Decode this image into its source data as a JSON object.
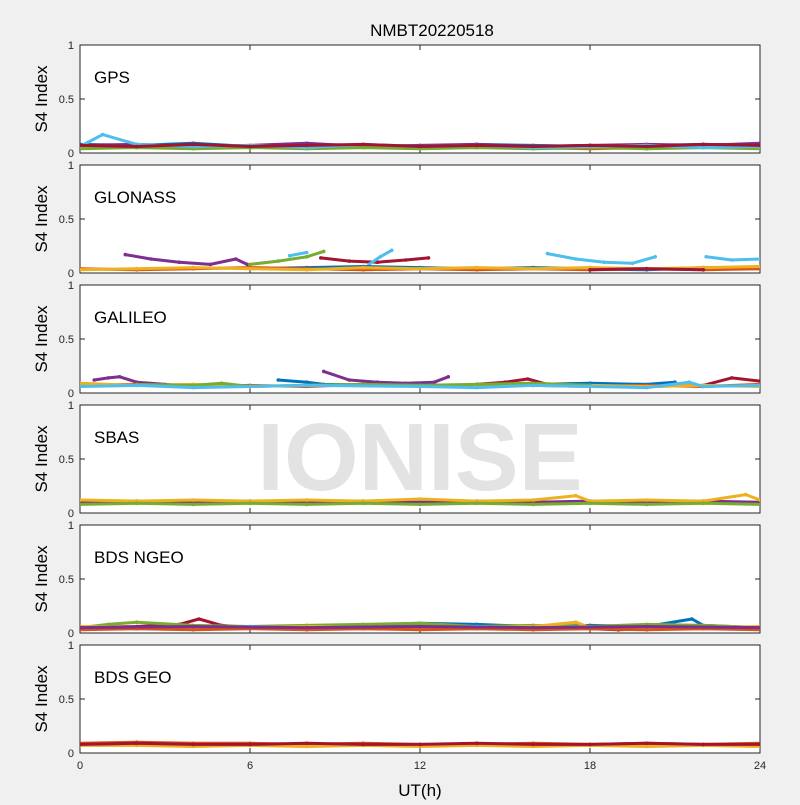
{
  "title": "NMBT20220518",
  "watermark": "IONISE",
  "xlabel": "UT(h)",
  "ylabel": "S4 Index",
  "xlim": [
    0,
    24
  ],
  "xticks": [
    0,
    6,
    12,
    18,
    24
  ],
  "ylim": [
    0,
    1
  ],
  "yticks": [
    "0",
    "0.5",
    "1"
  ],
  "colors": [
    "#0072BD",
    "#D95319",
    "#EDB120",
    "#7E2F8E",
    "#77AC30",
    "#4DBEEE",
    "#A2142F"
  ],
  "chart_data": [
    {
      "type": "scatter",
      "panel": "GPS",
      "xlim": [
        0,
        24
      ],
      "ylim": [
        0,
        1
      ],
      "series": [
        {
          "color": "#0072BD",
          "x": [
            0,
            2,
            4,
            6,
            8,
            10,
            12,
            14,
            16,
            18,
            20,
            22,
            24
          ],
          "y": [
            0.08,
            0.07,
            0.09,
            0.06,
            0.08,
            0.07,
            0.06,
            0.08,
            0.07,
            0.06,
            0.07,
            0.08,
            0.07
          ]
        },
        {
          "color": "#D95319",
          "x": [
            0,
            2,
            4,
            6,
            8,
            10,
            12,
            14,
            16,
            18,
            20,
            22,
            24
          ],
          "y": [
            0.05,
            0.06,
            0.05,
            0.06,
            0.05,
            0.06,
            0.05,
            0.06,
            0.05,
            0.04,
            0.05,
            0.06,
            0.05
          ]
        },
        {
          "color": "#EDB120",
          "x": [
            0,
            2,
            4,
            6,
            8,
            10,
            12,
            14,
            16,
            18,
            20,
            22,
            24
          ],
          "y": [
            0.06,
            0.05,
            0.07,
            0.05,
            0.06,
            0.05,
            0.06,
            0.05,
            0.06,
            0.05,
            0.06,
            0.05,
            0.06
          ]
        },
        {
          "color": "#7E2F8E",
          "x": [
            0,
            2,
            4,
            6,
            8,
            10,
            12,
            14,
            16,
            18,
            20,
            22,
            24
          ],
          "y": [
            0.07,
            0.08,
            0.06,
            0.07,
            0.09,
            0.06,
            0.07,
            0.08,
            0.06,
            0.07,
            0.08,
            0.07,
            0.09
          ]
        },
        {
          "color": "#77AC30",
          "x": [
            0,
            2,
            4,
            6,
            8,
            10,
            12,
            14,
            16,
            18,
            20,
            22,
            24
          ],
          "y": [
            0.04,
            0.05,
            0.04,
            0.05,
            0.04,
            0.05,
            0.04,
            0.05,
            0.04,
            0.05,
            0.04,
            0.05,
            0.04
          ]
        },
        {
          "color": "#4DBEEE",
          "x": [
            0,
            0.8,
            2,
            4,
            6,
            8,
            10,
            12,
            14,
            16,
            18,
            20,
            22,
            24
          ],
          "y": [
            0.06,
            0.17,
            0.08,
            0.06,
            0.07,
            0.05,
            0.08,
            0.06,
            0.07,
            0.05,
            0.06,
            0.07,
            0.05,
            0.06
          ]
        },
        {
          "color": "#A2142F",
          "x": [
            0,
            2,
            4,
            6,
            8,
            10,
            12,
            14,
            16,
            18,
            20,
            22,
            24
          ],
          "y": [
            0.07,
            0.06,
            0.08,
            0.06,
            0.07,
            0.08,
            0.06,
            0.07,
            0.06,
            0.07,
            0.06,
            0.08,
            0.07
          ]
        }
      ]
    },
    {
      "type": "scatter",
      "panel": "GLONASS",
      "xlim": [
        0,
        24
      ],
      "ylim": [
        0,
        1
      ],
      "series": [
        {
          "color": "#7E2F8E",
          "x": [
            1.6,
            2.5,
            3.5,
            4.6,
            5.5,
            5.9
          ],
          "y": [
            0.17,
            0.13,
            0.1,
            0.08,
            0.13,
            0.08
          ]
        },
        {
          "color": "#77AC30",
          "x": [
            6.0,
            7.0,
            8.0,
            8.6
          ],
          "y": [
            0.08,
            0.11,
            0.15,
            0.2
          ]
        },
        {
          "color": "#A2142F",
          "x": [
            8.5,
            9.5,
            10.5,
            11.5,
            12.3
          ],
          "y": [
            0.14,
            0.11,
            0.1,
            0.12,
            0.14
          ]
        },
        {
          "color": "#4DBEEE",
          "x": [
            7.4,
            8.0
          ],
          "y": [
            0.16,
            0.19
          ]
        },
        {
          "color": "#4DBEEE",
          "x": [
            10.2,
            10.6,
            11.0
          ],
          "y": [
            0.08,
            0.15,
            0.21
          ]
        },
        {
          "color": "#4DBEEE",
          "x": [
            16.5,
            17.5,
            18.5,
            19.5,
            20.3
          ],
          "y": [
            0.18,
            0.13,
            0.1,
            0.09,
            0.15
          ]
        },
        {
          "color": "#4DBEEE",
          "x": [
            22.1,
            23.0,
            24.0
          ],
          "y": [
            0.15,
            0.12,
            0.13
          ]
        },
        {
          "color": "#0072BD",
          "x": [
            6,
            8,
            10,
            12,
            14,
            16,
            18,
            20,
            22,
            24
          ],
          "y": [
            0.04,
            0.05,
            0.06,
            0.05,
            0.04,
            0.05,
            0.04,
            0.03,
            0.05,
            0.04
          ]
        },
        {
          "color": "#D95319",
          "x": [
            0,
            2,
            4,
            6,
            8,
            10,
            12,
            14,
            16,
            18,
            20,
            22,
            24
          ],
          "y": [
            0.04,
            0.03,
            0.04,
            0.05,
            0.04,
            0.03,
            0.04,
            0.03,
            0.04,
            0.03,
            0.04,
            0.03,
            0.04
          ]
        },
        {
          "color": "#EDB120",
          "x": [
            0,
            2,
            4,
            6,
            8,
            10,
            12,
            14,
            16,
            18,
            20,
            22,
            24
          ],
          "y": [
            0.03,
            0.04,
            0.05,
            0.04,
            0.03,
            0.05,
            0.04,
            0.05,
            0.04,
            0.05,
            0.04,
            0.05,
            0.06
          ]
        },
        {
          "color": "#A2142F",
          "x": [
            18,
            20,
            22
          ],
          "y": [
            0.03,
            0.04,
            0.03
          ]
        }
      ]
    },
    {
      "type": "scatter",
      "panel": "GALILEO",
      "xlim": [
        0,
        24
      ],
      "ylim": [
        0,
        1
      ],
      "series": [
        {
          "color": "#7E2F8E",
          "x": [
            0.5,
            1.0,
            1.4,
            2.0,
            3.0,
            4.0
          ],
          "y": [
            0.12,
            0.14,
            0.15,
            0.1,
            0.08,
            0.06
          ]
        },
        {
          "color": "#7E2F8E",
          "x": [
            8.6,
            9.5,
            10.5,
            11.5,
            12.5,
            13.0
          ],
          "y": [
            0.2,
            0.12,
            0.1,
            0.09,
            0.1,
            0.15
          ]
        },
        {
          "color": "#A2142F",
          "x": [
            14,
            15,
            15.8,
            16.5,
            18,
            20,
            22,
            23,
            24
          ],
          "y": [
            0.08,
            0.1,
            0.13,
            0.08,
            0.07,
            0.06,
            0.07,
            0.14,
            0.11
          ]
        },
        {
          "color": "#0072BD",
          "x": [
            7,
            8,
            8.6,
            14,
            16,
            18,
            20,
            21
          ],
          "y": [
            0.12,
            0.1,
            0.08,
            0.07,
            0.08,
            0.09,
            0.08,
            0.1
          ]
        },
        {
          "color": "#D95319",
          "x": [
            0,
            2,
            4,
            6,
            8,
            10,
            12,
            14,
            16,
            18,
            20,
            22,
            24
          ],
          "y": [
            0.07,
            0.08,
            0.06,
            0.07,
            0.06,
            0.08,
            0.07,
            0.06,
            0.07,
            0.06,
            0.07,
            0.06,
            0.08
          ]
        },
        {
          "color": "#EDB120",
          "x": [
            0,
            2,
            4,
            6,
            8,
            10,
            12,
            14,
            16,
            18,
            20,
            22,
            24
          ],
          "y": [
            0.09,
            0.07,
            0.08,
            0.06,
            0.07,
            0.08,
            0.06,
            0.07,
            0.08,
            0.07,
            0.06,
            0.07,
            0.06
          ]
        },
        {
          "color": "#77AC30",
          "x": [
            2,
            4,
            5,
            6,
            10,
            12,
            16,
            18
          ],
          "y": [
            0.08,
            0.07,
            0.09,
            0.06,
            0.08,
            0.07,
            0.09,
            0.07
          ]
        },
        {
          "color": "#4DBEEE",
          "x": [
            0,
            2,
            4,
            6,
            8,
            12,
            14,
            16,
            18,
            20,
            21.5,
            22,
            24
          ],
          "y": [
            0.06,
            0.07,
            0.05,
            0.06,
            0.07,
            0.06,
            0.05,
            0.07,
            0.06,
            0.05,
            0.1,
            0.06,
            0.07
          ]
        }
      ]
    },
    {
      "type": "scatter",
      "panel": "SBAS",
      "xlim": [
        0,
        24
      ],
      "ylim": [
        0,
        1
      ],
      "series": [
        {
          "color": "#7E2F8E",
          "x": [
            0,
            2,
            4,
            6,
            8,
            10,
            12,
            14,
            16,
            18,
            20,
            22,
            24
          ],
          "y": [
            0.1,
            0.11,
            0.1,
            0.11,
            0.1,
            0.11,
            0.1,
            0.11,
            0.1,
            0.11,
            0.1,
            0.11,
            0.1
          ]
        },
        {
          "color": "#EDB120",
          "x": [
            0,
            2,
            4,
            6,
            8,
            10,
            12,
            14,
            16,
            17.5,
            18,
            20,
            22,
            23.5,
            24
          ],
          "y": [
            0.12,
            0.11,
            0.12,
            0.11,
            0.12,
            0.11,
            0.13,
            0.11,
            0.12,
            0.16,
            0.11,
            0.12,
            0.11,
            0.17,
            0.12
          ]
        },
        {
          "color": "#77AC30",
          "x": [
            0,
            2,
            4,
            6,
            8,
            10,
            12,
            14,
            16,
            18,
            20,
            22,
            24
          ],
          "y": [
            0.08,
            0.09,
            0.08,
            0.09,
            0.08,
            0.09,
            0.08,
            0.09,
            0.08,
            0.09,
            0.08,
            0.09,
            0.08
          ]
        }
      ]
    },
    {
      "type": "scatter",
      "panel": "BDS NGEO",
      "xlim": [
        0,
        24
      ],
      "ylim": [
        0,
        1
      ],
      "series": [
        {
          "color": "#A2142F",
          "x": [
            0,
            2,
            3.5,
            4.2,
            5,
            6,
            8,
            10,
            12,
            14,
            16,
            18,
            19,
            20,
            22,
            24
          ],
          "y": [
            0.05,
            0.06,
            0.08,
            0.13,
            0.07,
            0.05,
            0.06,
            0.07,
            0.06,
            0.07,
            0.06,
            0.04,
            0.03,
            0.04,
            0.05,
            0.04
          ]
        },
        {
          "color": "#0072BD",
          "x": [
            0,
            2,
            4,
            6,
            8,
            10,
            12,
            14,
            16,
            18,
            20,
            21.6,
            22,
            24
          ],
          "y": [
            0.04,
            0.05,
            0.06,
            0.05,
            0.06,
            0.07,
            0.09,
            0.08,
            0.06,
            0.07,
            0.06,
            0.13,
            0.07,
            0.05
          ]
        },
        {
          "color": "#77AC30",
          "x": [
            0,
            1,
            2,
            4,
            6,
            8,
            10,
            12,
            14,
            16,
            18,
            20,
            22,
            24
          ],
          "y": [
            0.05,
            0.08,
            0.1,
            0.07,
            0.06,
            0.07,
            0.08,
            0.09,
            0.06,
            0.07,
            0.06,
            0.08,
            0.07,
            0.05
          ]
        },
        {
          "color": "#4DBEEE",
          "x": [
            0,
            2,
            4,
            6,
            8,
            10,
            12,
            14,
            16,
            18,
            20,
            22,
            24
          ],
          "y": [
            0.04,
            0.05,
            0.04,
            0.06,
            0.05,
            0.04,
            0.05,
            0.06,
            0.04,
            0.05,
            0.04,
            0.05,
            0.04
          ]
        },
        {
          "color": "#EDB120",
          "x": [
            0,
            2,
            4,
            6,
            8,
            10,
            12,
            14,
            16,
            17.5,
            18,
            20,
            22,
            24
          ],
          "y": [
            0.06,
            0.05,
            0.06,
            0.05,
            0.06,
            0.05,
            0.06,
            0.05,
            0.06,
            0.1,
            0.05,
            0.06,
            0.05,
            0.06
          ]
        },
        {
          "color": "#D95319",
          "x": [
            0,
            2,
            4,
            6,
            8,
            10,
            12,
            14,
            16,
            18,
            20,
            22,
            24
          ],
          "y": [
            0.03,
            0.04,
            0.03,
            0.04,
            0.03,
            0.04,
            0.03,
            0.04,
            0.03,
            0.04,
            0.03,
            0.04,
            0.03
          ]
        },
        {
          "color": "#7E2F8E",
          "x": [
            0,
            4,
            8,
            12,
            16,
            20,
            24
          ],
          "y": [
            0.05,
            0.06,
            0.05,
            0.06,
            0.05,
            0.06,
            0.05
          ]
        }
      ]
    },
    {
      "type": "scatter",
      "panel": "BDS GEO",
      "xlim": [
        0,
        24
      ],
      "ylim": [
        0,
        1
      ],
      "series": [
        {
          "color": "#D95319",
          "x": [
            0,
            2,
            4,
            6,
            8,
            10,
            12,
            14,
            16,
            18,
            20,
            22,
            24
          ],
          "y": [
            0.09,
            0.1,
            0.09,
            0.09,
            0.08,
            0.09,
            0.08,
            0.08,
            0.09,
            0.08,
            0.09,
            0.08,
            0.09
          ]
        },
        {
          "color": "#EDB120",
          "x": [
            0,
            2,
            4,
            6,
            8,
            10,
            12,
            14,
            16,
            18,
            20,
            22,
            24
          ],
          "y": [
            0.07,
            0.07,
            0.06,
            0.07,
            0.06,
            0.07,
            0.06,
            0.07,
            0.06,
            0.07,
            0.06,
            0.07,
            0.06
          ]
        },
        {
          "color": "#A2142F",
          "x": [
            0,
            2,
            4,
            6,
            8,
            10,
            12,
            14,
            16,
            18,
            20,
            22,
            24
          ],
          "y": [
            0.08,
            0.09,
            0.08,
            0.08,
            0.09,
            0.08,
            0.08,
            0.09,
            0.08,
            0.08,
            0.09,
            0.08,
            0.08
          ]
        }
      ]
    }
  ]
}
